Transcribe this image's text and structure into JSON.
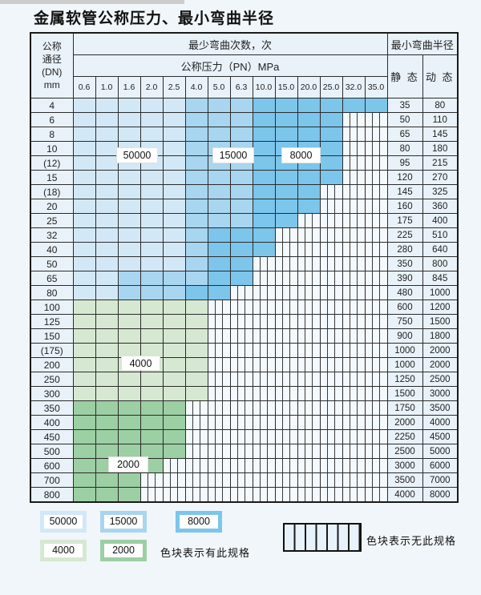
{
  "page": {
    "title": "金属软管公称压力、最小弯曲半径"
  },
  "table": {
    "dn_header_lines": [
      "公称",
      "通径",
      "(DN)",
      "mm"
    ],
    "bend_times_header": "最少弯曲次数，次",
    "pressure_header": "公称压力（PN）MPa",
    "radius_header": "最小弯曲半径",
    "static_header": "静 态",
    "dynamic_header": "动 态",
    "pressure_columns": [
      "0.6",
      "1.0",
      "1.6",
      "2.0",
      "2.5",
      "4.0",
      "5.0",
      "6.3",
      "10.0",
      "15.0",
      "20.0",
      "25.0",
      "32.0",
      "35.0"
    ],
    "rows": [
      {
        "dn": "4",
        "static": "35",
        "dynamic": "80",
        "zones": [
          "b1",
          "b1",
          "b1",
          "b1",
          "b1",
          "b2",
          "b2",
          "b2",
          "b3",
          "b3",
          "b3",
          "b3",
          "b3",
          "b3"
        ]
      },
      {
        "dn": "6",
        "static": "50",
        "dynamic": "110",
        "zones": [
          "b1",
          "b1",
          "b1",
          "b1",
          "b1",
          "b2",
          "b2",
          "b2",
          "b3",
          "b3",
          "b3",
          "b3",
          "x",
          "x"
        ]
      },
      {
        "dn": "8",
        "static": "65",
        "dynamic": "145",
        "zones": [
          "b1",
          "b1",
          "b1",
          "b1",
          "b1",
          "b2",
          "b2",
          "b2",
          "b3",
          "b3",
          "b3",
          "b3",
          "x",
          "x"
        ]
      },
      {
        "dn": "10",
        "static": "80",
        "dynamic": "180",
        "zones": [
          "b1",
          "b1",
          "b1",
          "b1",
          "b1",
          "b2",
          "b2",
          "b2",
          "b3",
          "b3",
          "b3",
          "b3",
          "x",
          "x"
        ]
      },
      {
        "dn": "(12)",
        "static": "95",
        "dynamic": "215",
        "zones": [
          "b1",
          "b1",
          "b1",
          "b1",
          "b1",
          "b2",
          "b2",
          "b2",
          "b3",
          "b3",
          "b3",
          "b3",
          "x",
          "x"
        ]
      },
      {
        "dn": "15",
        "static": "120",
        "dynamic": "270",
        "zones": [
          "b1",
          "b1",
          "b1",
          "b1",
          "b1",
          "b2",
          "b2",
          "b2",
          "b3",
          "b3",
          "b3",
          "b3",
          "x",
          "x"
        ]
      },
      {
        "dn": "(18)",
        "static": "145",
        "dynamic": "325",
        "zones": [
          "b1",
          "b1",
          "b1",
          "b1",
          "b1",
          "b2",
          "b2",
          "b2",
          "b3",
          "b3",
          "b3",
          "x",
          "x",
          "x"
        ]
      },
      {
        "dn": "20",
        "static": "160",
        "dynamic": "360",
        "zones": [
          "b1",
          "b1",
          "b1",
          "b1",
          "b1",
          "b2",
          "b2",
          "b2",
          "b3",
          "b3",
          "b3",
          "x",
          "x",
          "x"
        ]
      },
      {
        "dn": "25",
        "static": "175",
        "dynamic": "400",
        "zones": [
          "b1",
          "b1",
          "b1",
          "b1",
          "b1",
          "b2",
          "b2",
          "b2",
          "b3",
          "b3",
          "x",
          "x",
          "x",
          "x"
        ]
      },
      {
        "dn": "32",
        "static": "225",
        "dynamic": "510",
        "zones": [
          "b1",
          "b1",
          "b1",
          "b1",
          "b1",
          "b2",
          "b3",
          "b3",
          "b3",
          "x",
          "x",
          "x",
          "x",
          "x"
        ]
      },
      {
        "dn": "40",
        "static": "280",
        "dynamic": "640",
        "zones": [
          "b1",
          "b1",
          "b1",
          "b1",
          "b1",
          "b2",
          "b3",
          "b3",
          "b3",
          "x",
          "x",
          "x",
          "x",
          "x"
        ]
      },
      {
        "dn": "50",
        "static": "350",
        "dynamic": "800",
        "zones": [
          "b1",
          "b1",
          "b1",
          "b1",
          "b1",
          "b2",
          "b3",
          "b3",
          "x",
          "x",
          "x",
          "x",
          "x",
          "x"
        ]
      },
      {
        "dn": "65",
        "static": "390",
        "dynamic": "845",
        "zones": [
          "b1",
          "b1",
          "b2",
          "b2",
          "b2",
          "b2",
          "b3",
          "b3",
          "x",
          "x",
          "x",
          "x",
          "x",
          "x"
        ]
      },
      {
        "dn": "80",
        "static": "480",
        "dynamic": "1000",
        "zones": [
          "b1",
          "b1",
          "b2",
          "b2",
          "b2",
          "b3",
          "b3",
          "x",
          "x",
          "x",
          "x",
          "x",
          "x",
          "x"
        ]
      },
      {
        "dn": "100",
        "static": "600",
        "dynamic": "1200",
        "zones": [
          "g1",
          "g1",
          "g1",
          "g1",
          "g1",
          "g1",
          "x",
          "x",
          "x",
          "x",
          "x",
          "x",
          "x",
          "x"
        ]
      },
      {
        "dn": "125",
        "static": "750",
        "dynamic": "1500",
        "zones": [
          "g1",
          "g1",
          "g1",
          "g1",
          "g1",
          "g1",
          "x",
          "x",
          "x",
          "x",
          "x",
          "x",
          "x",
          "x"
        ]
      },
      {
        "dn": "150",
        "static": "900",
        "dynamic": "1800",
        "zones": [
          "g1",
          "g1",
          "g1",
          "g1",
          "g1",
          "g1",
          "x",
          "x",
          "x",
          "x",
          "x",
          "x",
          "x",
          "x"
        ]
      },
      {
        "dn": "(175)",
        "static": "1000",
        "dynamic": "2000",
        "zones": [
          "g1",
          "g1",
          "g1",
          "g1",
          "g1",
          "g1",
          "x",
          "x",
          "x",
          "x",
          "x",
          "x",
          "x",
          "x"
        ]
      },
      {
        "dn": "200",
        "static": "1000",
        "dynamic": "2000",
        "zones": [
          "g1",
          "g1",
          "g1",
          "g1",
          "g1",
          "g1",
          "x",
          "x",
          "x",
          "x",
          "x",
          "x",
          "x",
          "x"
        ]
      },
      {
        "dn": "250",
        "static": "1250",
        "dynamic": "2500",
        "zones": [
          "g1",
          "g1",
          "g1",
          "g1",
          "g1",
          "g1",
          "x",
          "x",
          "x",
          "x",
          "x",
          "x",
          "x",
          "x"
        ]
      },
      {
        "dn": "300",
        "static": "1500",
        "dynamic": "3000",
        "zones": [
          "g1",
          "g1",
          "g1",
          "g1",
          "g1",
          "g1",
          "x",
          "x",
          "x",
          "x",
          "x",
          "x",
          "x",
          "x"
        ]
      },
      {
        "dn": "350",
        "static": "1750",
        "dynamic": "3500",
        "zones": [
          "g2",
          "g2",
          "g2",
          "g2",
          "g2",
          "x",
          "x",
          "x",
          "x",
          "x",
          "x",
          "x",
          "x",
          "x"
        ]
      },
      {
        "dn": "400",
        "static": "2000",
        "dynamic": "4000",
        "zones": [
          "g2",
          "g2",
          "g2",
          "g2",
          "g2",
          "x",
          "x",
          "x",
          "x",
          "x",
          "x",
          "x",
          "x",
          "x"
        ]
      },
      {
        "dn": "450",
        "static": "2250",
        "dynamic": "4500",
        "zones": [
          "g2",
          "g2",
          "g2",
          "g2",
          "g2",
          "x",
          "x",
          "x",
          "x",
          "x",
          "x",
          "x",
          "x",
          "x"
        ]
      },
      {
        "dn": "500",
        "static": "2500",
        "dynamic": "5000",
        "zones": [
          "g2",
          "g2",
          "g2",
          "g2",
          "g2",
          "x",
          "x",
          "x",
          "x",
          "x",
          "x",
          "x",
          "x",
          "x"
        ]
      },
      {
        "dn": "600",
        "static": "3000",
        "dynamic": "6000",
        "zones": [
          "g2",
          "g2",
          "g2",
          "g2",
          "x",
          "x",
          "x",
          "x",
          "x",
          "x",
          "x",
          "x",
          "x",
          "x"
        ]
      },
      {
        "dn": "700",
        "static": "3500",
        "dynamic": "7000",
        "zones": [
          "g2",
          "g2",
          "g2",
          "x",
          "x",
          "x",
          "x",
          "x",
          "x",
          "x",
          "x",
          "x",
          "x",
          "x"
        ]
      },
      {
        "dn": "800",
        "static": "4000",
        "dynamic": "8000",
        "zones": [
          "g2",
          "g2",
          "g2",
          "x",
          "x",
          "x",
          "x",
          "x",
          "x",
          "x",
          "x",
          "x",
          "x",
          "x"
        ]
      }
    ]
  },
  "overlay_labels": [
    {
      "text": "50000"
    },
    {
      "text": "15000"
    },
    {
      "text": "8000"
    },
    {
      "text": "4000"
    },
    {
      "text": "2000"
    }
  ],
  "legend": {
    "chips": [
      {
        "label": "50000",
        "zone": "b1"
      },
      {
        "label": "15000",
        "zone": "b2"
      },
      {
        "label": "8000",
        "zone": "b3"
      },
      {
        "label": "4000",
        "zone": "g1"
      },
      {
        "label": "2000",
        "zone": "g2"
      }
    ],
    "has_spec_text": "色块表示有此规格",
    "no_spec_text": "色块表示无此规格"
  },
  "colors": {
    "b1": "#d3e8f6",
    "b2": "#a8d5ef",
    "b3": "#7cc5eb",
    "g1": "#d6e8d1",
    "g2": "#9ccfa3",
    "cell-light": "#e9f2f9",
    "hatchbg": "#f3f9fd"
  }
}
